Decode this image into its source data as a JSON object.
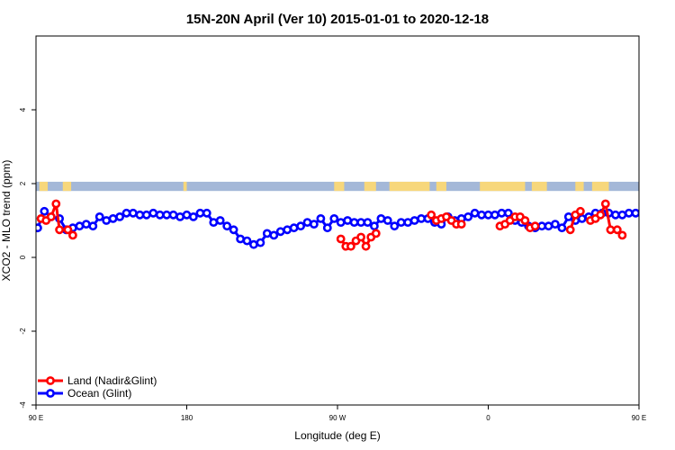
{
  "chart_data": {
    "type": "line",
    "title": "15N-20N April (Ver 10)   2015-01-01 to 2020-12-18",
    "xlabel": "Longitude (deg E)",
    "ylabel": "XCO2 - MLO trend (ppm)",
    "xlim": [
      90,
      450
    ],
    "ylim": [
      -4,
      6
    ],
    "x_ticks": [
      {
        "value": 90,
        "label": "90 E"
      },
      {
        "value": 180,
        "label": "180"
      },
      {
        "value": 270,
        "label": "90 W"
      },
      {
        "value": 360,
        "label": "0"
      },
      {
        "value": 450,
        "label": "90 E"
      },
      {
        "value": 540,
        "label": "180"
      }
    ],
    "y_ticks": [
      {
        "value": -4,
        "label": "-4"
      },
      {
        "value": -2,
        "label": "-2"
      },
      {
        "value": 0,
        "label": "0"
      },
      {
        "value": 2,
        "label": "2"
      },
      {
        "value": 4,
        "label": "4"
      }
    ],
    "grid": false,
    "legend_position": "bottom-left",
    "land_mask_band": {
      "y_min": 1.8,
      "y_max": 2.05,
      "ocean_color": "#a4b8d8",
      "land_color": "#f7d77b"
    },
    "series": [
      {
        "name": "Land (Nadir&Glint)",
        "color": "#ff0000",
        "segments": [
          [
            [
              93,
              1.05
            ],
            [
              96,
              1.0
            ],
            [
              99,
              1.1
            ],
            [
              102,
              1.45
            ],
            [
              104,
              0.75
            ],
            [
              109,
              0.75
            ],
            [
              112,
              0.6
            ]
          ],
          [
            [
              272,
              0.5
            ],
            [
              275,
              0.3
            ],
            [
              278,
              0.3
            ],
            [
              281,
              0.45
            ],
            [
              284,
              0.55
            ],
            [
              287,
              0.3
            ],
            [
              290,
              0.55
            ],
            [
              293,
              0.65
            ]
          ],
          [
            [
              326,
              1.15
            ],
            [
              329,
              1.0
            ],
            [
              332,
              1.05
            ],
            [
              335,
              1.1
            ],
            [
              338,
              1.0
            ],
            [
              341,
              0.9
            ],
            [
              344,
              0.9
            ]
          ],
          [
            [
              367,
              0.85
            ],
            [
              370,
              0.9
            ],
            [
              373,
              1.0
            ],
            [
              376,
              1.1
            ],
            [
              379,
              1.1
            ],
            [
              382,
              1.0
            ],
            [
              385,
              0.8
            ],
            [
              388,
              0.85
            ]
          ],
          [
            [
              409,
              0.75
            ],
            [
              412,
              1.15
            ],
            [
              415,
              1.25
            ]
          ],
          [
            [
              421,
              1.0
            ],
            [
              424,
              1.05
            ],
            [
              427,
              1.15
            ],
            [
              430,
              1.45
            ],
            [
              433,
              0.75
            ],
            [
              437,
              0.75
            ],
            [
              440,
              0.6
            ]
          ]
        ]
      },
      {
        "name": "Ocean (Glint)",
        "color": "#0000ff",
        "segments": [
          [
            [
              91,
              0.8
            ],
            [
              95,
              1.25
            ],
            [
              99,
              1.1
            ],
            [
              104,
              1.05
            ],
            [
              108,
              0.75
            ],
            [
              112,
              0.8
            ],
            [
              116,
              0.85
            ],
            [
              120,
              0.9
            ],
            [
              124,
              0.85
            ],
            [
              128,
              1.1
            ],
            [
              132,
              1.0
            ],
            [
              136,
              1.05
            ],
            [
              140,
              1.1
            ],
            [
              144,
              1.2
            ],
            [
              148,
              1.2
            ],
            [
              152,
              1.15
            ],
            [
              156,
              1.15
            ],
            [
              160,
              1.2
            ],
            [
              164,
              1.15
            ],
            [
              168,
              1.15
            ],
            [
              172,
              1.15
            ],
            [
              176,
              1.1
            ],
            [
              180,
              1.15
            ],
            [
              184,
              1.1
            ],
            [
              188,
              1.2
            ],
            [
              192,
              1.2
            ],
            [
              196,
              0.95
            ],
            [
              200,
              1.0
            ],
            [
              204,
              0.85
            ],
            [
              208,
              0.75
            ],
            [
              212,
              0.5
            ],
            [
              216,
              0.45
            ],
            [
              220,
              0.35
            ],
            [
              224,
              0.4
            ],
            [
              228,
              0.65
            ],
            [
              232,
              0.6
            ],
            [
              236,
              0.7
            ],
            [
              240,
              0.75
            ],
            [
              244,
              0.8
            ],
            [
              248,
              0.85
            ],
            [
              252,
              0.95
            ],
            [
              256,
              0.9
            ],
            [
              260,
              1.05
            ],
            [
              264,
              0.8
            ],
            [
              268,
              1.05
            ],
            [
              272,
              0.95
            ],
            [
              276,
              1.0
            ],
            [
              280,
              0.95
            ],
            [
              284,
              0.95
            ],
            [
              288,
              0.95
            ],
            [
              292,
              0.85
            ],
            [
              296,
              1.05
            ],
            [
              300,
              1.0
            ],
            [
              304,
              0.85
            ],
            [
              308,
              0.95
            ],
            [
              312,
              0.95
            ],
            [
              316,
              1.0
            ],
            [
              320,
              1.05
            ],
            [
              324,
              1.05
            ],
            [
              328,
              0.95
            ],
            [
              332,
              0.9
            ],
            [
              336,
              1.1
            ],
            [
              340,
              1.0
            ],
            [
              344,
              1.05
            ],
            [
              348,
              1.1
            ],
            [
              352,
              1.2
            ],
            [
              356,
              1.15
            ],
            [
              360,
              1.15
            ],
            [
              364,
              1.15
            ],
            [
              368,
              1.2
            ],
            [
              372,
              1.2
            ],
            [
              376,
              1.0
            ],
            [
              380,
              0.95
            ],
            [
              384,
              0.85
            ],
            [
              388,
              0.8
            ],
            [
              392,
              0.85
            ],
            [
              396,
              0.85
            ],
            [
              400,
              0.9
            ],
            [
              404,
              0.8
            ],
            [
              408,
              1.1
            ],
            [
              412,
              1.0
            ],
            [
              416,
              1.05
            ],
            [
              420,
              1.1
            ],
            [
              424,
              1.2
            ],
            [
              428,
              1.2
            ],
            [
              432,
              1.2
            ],
            [
              436,
              1.15
            ],
            [
              440,
              1.15
            ],
            [
              444,
              1.2
            ],
            [
              448,
              1.2
            ]
          ]
        ]
      }
    ]
  }
}
